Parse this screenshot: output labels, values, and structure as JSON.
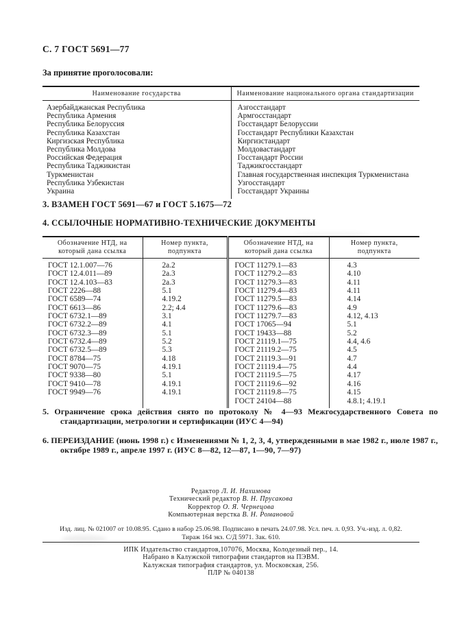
{
  "page": {
    "header": "С. 7 ГОСТ 5691—77",
    "vote_intro": "За принятие проголосовали:"
  },
  "vote_table": {
    "headers": [
      "Наименование государства",
      "Наименование национального органа стандартизации"
    ],
    "rows": [
      [
        "Азербайджанская Республика",
        "Азгосстандарт"
      ],
      [
        "Республика Армения",
        "Армгосстандарт"
      ],
      [
        "Республика Белоруссия",
        "Госстандарт Белоруссии"
      ],
      [
        "Республика Казахстан",
        "Госстандарт Республики Казахстан"
      ],
      [
        "Киргизская Республика",
        "Киргизстандарт"
      ],
      [
        "Республика Молдова",
        "Молдовастандарт"
      ],
      [
        "Российская Федерация",
        "Госстандарт России"
      ],
      [
        "Республика Таджикистан",
        "Таджикгосстандарт"
      ],
      [
        "Туркменистан",
        "Главная государственная инспекция Туркменистана"
      ],
      [
        "Республика Узбекистан",
        "Узгосстандарт"
      ],
      [
        "Украина",
        "Госстандарт Украины"
      ]
    ]
  },
  "section3": "3. ВЗАМЕН ГОСТ 5691—67 и ГОСТ 5.1675—72",
  "section4": "4. ССЫЛОЧНЫЕ НОРМАТИВНО-ТЕХНИЧЕСКИЕ ДОКУМЕНТЫ",
  "ref_table": {
    "headers": [
      "Обозначение НТД, на который дана ссылка",
      "Номер пункта, подпункта",
      "Обозначение НТД, на который дана ссылка",
      "Номер пункта, подпункта"
    ],
    "rows": [
      [
        "ГОСТ 12.1.007—76",
        "2а.2",
        "ГОСТ 11279.1—83",
        "4.3"
      ],
      [
        "ГОСТ 12.4.011—89",
        "2а.3",
        "ГОСТ 11279.2—83",
        "4.10"
      ],
      [
        "ГОСТ 12.4.103—83",
        "2а.3",
        "ГОСТ 11279.3—83",
        "4.11"
      ],
      [
        "ГОСТ 2226—88",
        "5.1",
        "ГОСТ 11279.4—83",
        "4.11"
      ],
      [
        "ГОСТ 6589—74",
        "4.19.2",
        "ГОСТ 11279.5—83",
        "4.14"
      ],
      [
        "ГОСТ 6613—86",
        "2.2; 4.4",
        "ГОСТ 11279.6—83",
        "4.9"
      ],
      [
        "ГОСТ 6732.1—89",
        "3.1",
        "ГОСТ 11279.7—83",
        "4.12, 4.13"
      ],
      [
        "ГОСТ 6732.2—89",
        "4.1",
        "ГОСТ 17065—94",
        "5.1"
      ],
      [
        "ГОСТ 6732.3—89",
        "5.1",
        "ГОСТ 19433—88",
        "5.2"
      ],
      [
        "ГОСТ 6732.4—89",
        "5.2",
        "ГОСТ 21119.1—75",
        "4.4, 4.6"
      ],
      [
        "ГОСТ 6732.5—89",
        "5.3",
        "ГОСТ 21119.2—75",
        "4.5"
      ],
      [
        "ГОСТ 8784—75",
        "4.18",
        "ГОСТ 21119.3—91",
        "4.7"
      ],
      [
        "ГОСТ 9070—75",
        "4.19.1",
        "ГОСТ 21119.4—75",
        "4.4"
      ],
      [
        "ГОСТ 9338—80",
        "5.1",
        "ГОСТ 21119.5—75",
        "4.17"
      ],
      [
        "ГОСТ 9410—78",
        "4.19.1",
        "ГОСТ 21119.6—92",
        "4.16"
      ],
      [
        "ГОСТ 9949—76",
        "4.19.1",
        "ГОСТ 21119.8—75",
        "4.15"
      ],
      [
        "",
        "",
        "ГОСТ 24104—88",
        "4.8.1; 4.19.1"
      ]
    ]
  },
  "section5": "5. Ограничение срока действия снято по протоколу № 4—93 Межгосударственного Совета по стандартизации, метрологии и сертификации (ИУС 4—94)",
  "section6": "6. ПЕРЕИЗДАНИЕ (июнь 1998 г.) с Изменениями № 1, 2, 3, 4, утвержденными в мае 1982 г., июле 1987 г., октябре 1989 г., апреле 1997 г. (ИУС 8—82, 12—87, 1—90, 7—97)",
  "credits": [
    {
      "role": "Редактор",
      "name": "Л. И. Нахимова"
    },
    {
      "role": "Технический редактор",
      "name": "В. Н. Прусакова"
    },
    {
      "role": "Корректор",
      "name": "О. Я. Чернецова"
    },
    {
      "role": "Компьютерная верстка",
      "name": "В. Н. Романовой"
    }
  ],
  "imprint": {
    "line1": "Изд. лиц. № 021007 от 10.08.95. Сдано в набор 25.06.98. Подписано в печать 24.07.98. Усл. печ. л. 0,93. Уч.-изд. л. 0,82.",
    "line2": "Тираж 164 экз. С/Д 5971. Зак. 610."
  },
  "publisher": {
    "line1": "ИПК Издательство стандартов,107076, Москва, Колодезный пер., 14.",
    "line2": "Набрано в Калужской типографии стандартов на ПЭВМ.",
    "line3": "Калужская типография стандартов, ул. Московская, 256.",
    "line4": "ПЛР № 040138"
  }
}
